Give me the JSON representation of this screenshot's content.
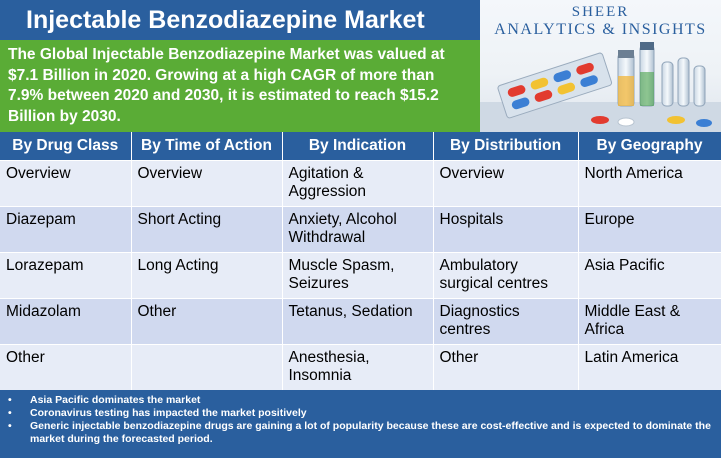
{
  "title": "Injectable Benzodiazepine Market",
  "summary_bold_prefix": "The",
  "summary_rest": " Global Injectable Benzodiazepine Market was valued at $7.1 Billion in 2020. Growing at a high CAGR of more than 7.9% between 2020 and 2030, it is estimated to reach $15.2 Billion by 2030.",
  "brand": {
    "line1": "SHEER",
    "line2": "ANALYTICS & INSIGHTS"
  },
  "table": {
    "headers": [
      "By Drug Class",
      "By Time of Action",
      "By Indication",
      "By Distribution",
      "By Geography"
    ],
    "rows": [
      [
        "Overview",
        "Overview",
        "Agitation & Aggression",
        "Overview",
        "North America"
      ],
      [
        "Diazepam",
        "Short Acting",
        "Anxiety, Alcohol Withdrawal",
        "Hospitals",
        "Europe"
      ],
      [
        "Lorazepam",
        "Long Acting",
        "Muscle Spasm, Seizures",
        "Ambulatory surgical centres",
        "Asia Pacific"
      ],
      [
        "Midazolam",
        "Other",
        "Tetanus, Sedation",
        "Diagnostics centres",
        "Middle East & Africa"
      ],
      [
        "Other",
        "",
        "Anesthesia, Insomnia",
        "Other",
        "Latin America"
      ]
    ]
  },
  "notes": [
    "Asia Pacific dominates the market",
    "Coronavirus testing has impacted the market positively",
    "Generic injectable benzodiazepine drugs are gaining a lot of popularity because these are cost-effective and is expected to dominate the market during the forecasted period."
  ]
}
